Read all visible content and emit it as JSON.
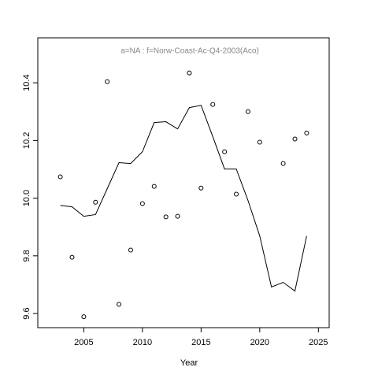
{
  "chart_data": {
    "type": "line",
    "title": "a=NA  :  f=Norw-Coast-Ac-Q4-2003(Aco)",
    "xlabel": "Year",
    "x": [
      2003,
      2004,
      2005,
      2006,
      2007,
      2008,
      2009,
      2010,
      2011,
      2012,
      2013,
      2014,
      2015,
      2016,
      2017,
      2018,
      2019,
      2020,
      2021,
      2022,
      2023,
      2024
    ],
    "series": [
      {
        "style": "points",
        "color": "#000000",
        "values": [
          10.074,
          9.795,
          9.589,
          9.986,
          10.404,
          9.632,
          9.82,
          9.981,
          10.041,
          9.935,
          9.937,
          10.434,
          10.035,
          10.325,
          10.161,
          10.014,
          10.3,
          10.194,
          null,
          10.12,
          10.205,
          10.226
        ]
      },
      {
        "style": "line",
        "color": "#000000",
        "values": [
          9.975,
          9.97,
          9.937,
          9.943,
          10.033,
          10.123,
          10.12,
          10.161,
          10.262,
          10.265,
          10.24,
          10.314,
          10.322,
          10.213,
          10.101,
          10.101,
          9.992,
          9.869,
          9.692,
          9.708,
          9.678,
          9.869
        ]
      }
    ],
    "xlim": [
      2001.08,
      2025.92
    ],
    "xticks": [
      2005,
      2010,
      2015,
      2020,
      2025
    ],
    "ylim": [
      9.551,
      10.556
    ],
    "yticks": [
      9.6,
      9.8,
      {
        "value": 10,
        "label": "10.0"
      },
      10.2,
      10.4
    ]
  }
}
